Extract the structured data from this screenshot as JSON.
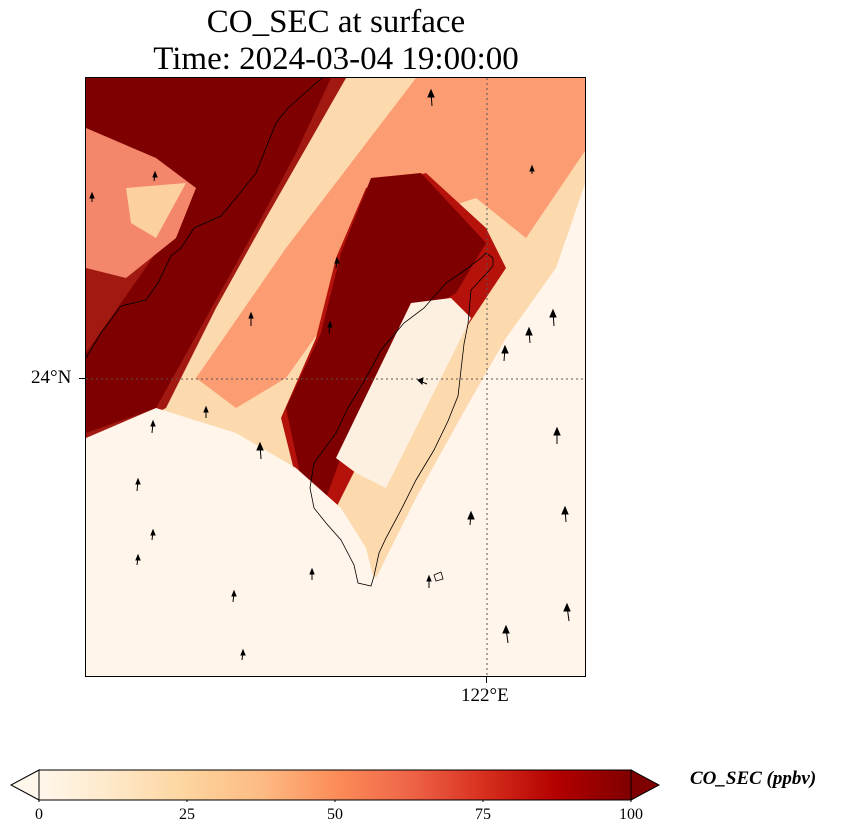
{
  "title": {
    "line1": "CO_SEC at surface",
    "line2": "Time: 2024-03-04 19:00:00"
  },
  "axes": {
    "latitude_tick": "24°N",
    "longitude_tick": "122°E"
  },
  "colorbar": {
    "label": "CO_SEC (ppbv)",
    "ticks": [
      "0",
      "25",
      "50",
      "75",
      "100"
    ],
    "min": 0,
    "max": 100,
    "colormap": "OrRd",
    "extend": "both",
    "colors": [
      "#fff7ec",
      "#fee8c8",
      "#fdd49e",
      "#fdbb84",
      "#fc8d59",
      "#ef6548",
      "#d7301f",
      "#b30000",
      "#7f0000"
    ]
  },
  "map": {
    "gridlines": "dotted",
    "coastline_color": "#000000",
    "wind_vectors": "black arrows, mostly pointing north"
  }
}
